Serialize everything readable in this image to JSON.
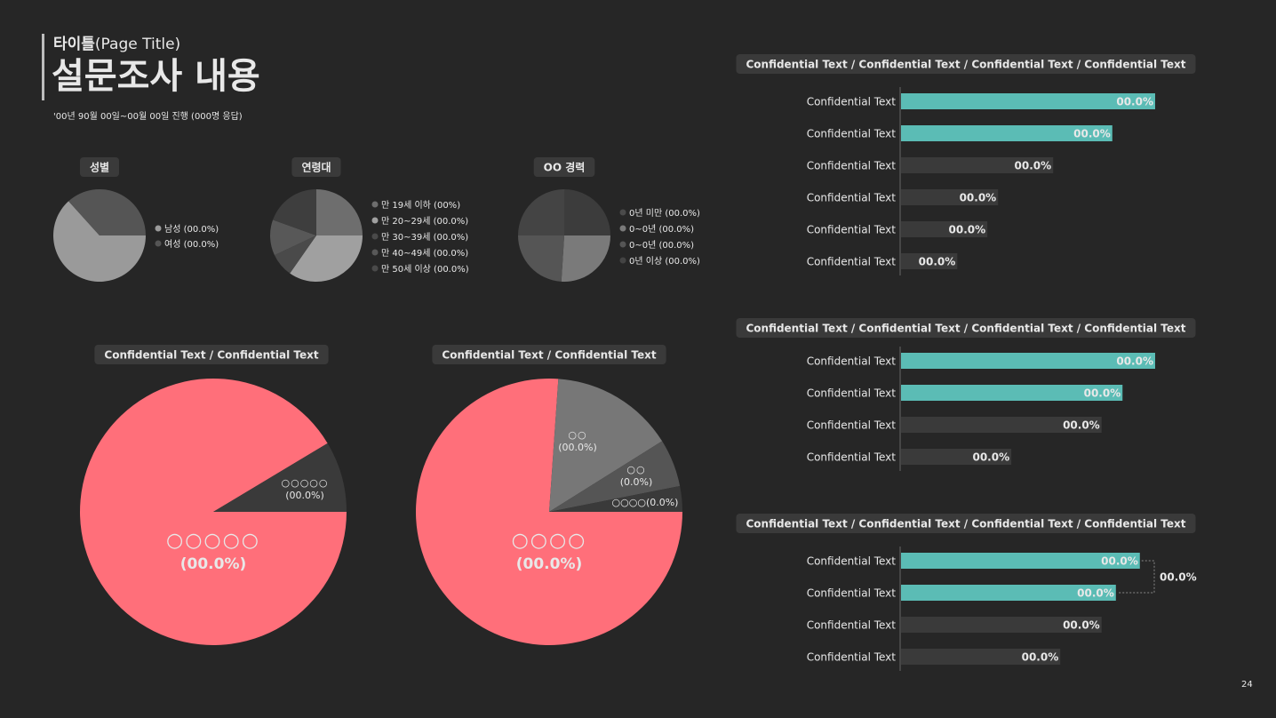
{
  "header": {
    "kicker": "타이틀",
    "kicker_sub": "(Page Title)",
    "title": "설문조사 내용",
    "subtitle": "'00년 90월 00일~00월 00일 진행 (000명 응답)",
    "page_number": "24"
  },
  "chart_data": [
    {
      "type": "pie",
      "title": "성별",
      "categories": [
        "남성 (00.0%)",
        "여성 (00.0%)"
      ],
      "values": [
        63.3,
        36.7
      ],
      "colors": [
        "#9a9a9a",
        "#555555"
      ]
    },
    {
      "type": "pie",
      "title": "연령대",
      "categories": [
        "만 19세 이하 (00%)",
        "만 20~29세 (00.0%)",
        "만 30~39세 (00.0%)",
        "만 40~49세 (00.0%)",
        "만 50세 이상 (00.0%)"
      ],
      "values": [
        25,
        34.7,
        8.3,
        12.5,
        19.5
      ],
      "colors": [
        "#6e6e6e",
        "#a0a0a0",
        "#4a4a4a",
        "#585858",
        "#3e3e3e"
      ]
    },
    {
      "type": "pie",
      "title": "OO 경력",
      "categories": [
        "0년 미만 (00.0%)",
        "0~0년 (00.0%)",
        "0~0년 (00.0%)",
        "0년 이상 (00.0%)"
      ],
      "values": [
        25,
        26,
        24,
        25
      ],
      "colors": [
        "#3c3c3c",
        "#7a7a7a",
        "#555555",
        "#444444"
      ]
    },
    {
      "type": "pie",
      "title": "Confidential Text / Confidential Text",
      "categories": [
        "○○○○○",
        "○○○○○"
      ],
      "values": [
        91.4,
        8.6
      ],
      "value_labels": [
        "(00.0%)",
        "(00.0%)"
      ],
      "colors": [
        "#ff6f7a",
        "#3a3a3a"
      ]
    },
    {
      "type": "pie",
      "title": "Confidential Text / Confidential Text",
      "categories": [
        "○○○○",
        "○○",
        "○○",
        "○○○○"
      ],
      "values": [
        76.1,
        15,
        5.8,
        3.1
      ],
      "value_labels": [
        "(00.0%)",
        "(00.0%)",
        "(0.0%)",
        "(0.0%)"
      ],
      "colors": [
        "#ff6f7a",
        "#777777",
        "#555555",
        "#3a3a3a"
      ]
    },
    {
      "type": "bar",
      "title": "Confidential Text / Confidential Text / Confidential Text / Confidential Text",
      "categories": [
        "Confidential Text",
        "Confidential Text",
        "Confidential Text",
        "Confidential Text",
        "Confidential Text",
        "Confidential Text"
      ],
      "values": [
        50,
        41.6,
        30,
        19.2,
        17.1,
        11.2
      ],
      "value_labels": [
        "00.0%",
        "00.0%",
        "00.0%",
        "00.0%",
        "00.0%",
        "00.0%"
      ],
      "colors": [
        "#5bbcb5",
        "#5bbcb5",
        "#3a3a3a",
        "#3a3a3a",
        "#3a3a3a",
        "#3a3a3a"
      ],
      "xlim": [
        0,
        50
      ]
    },
    {
      "type": "bar",
      "title": "Confidential Text / Confidential Text / Confidential Text / Confidential Text",
      "categories": [
        "Confidential Text",
        "Confidential Text",
        "Confidential Text",
        "Confidential Text"
      ],
      "values": [
        50,
        43.6,
        39.5,
        21.8
      ],
      "value_labels": [
        "00.0%",
        "00.0%",
        "00.0%",
        "00.0%"
      ],
      "colors": [
        "#5bbcb5",
        "#5bbcb5",
        "#3a3a3a",
        "#3a3a3a"
      ],
      "xlim": [
        0,
        50
      ]
    },
    {
      "type": "bar",
      "title": "Confidential Text / Confidential Text / Confidential Text / Confidential Text",
      "categories": [
        "Confidential Text",
        "Confidential Text",
        "Confidential Text",
        "Confidential Text"
      ],
      "values": [
        47,
        42.3,
        39.5,
        31.4
      ],
      "value_labels": [
        "00.0%",
        "00.0%",
        "00.0%",
        "00.0%"
      ],
      "colors": [
        "#5bbcb5",
        "#5bbcb5",
        "#3a3a3a",
        "#3a3a3a"
      ],
      "xlim": [
        0,
        50
      ],
      "annotation": "00.0%"
    }
  ]
}
